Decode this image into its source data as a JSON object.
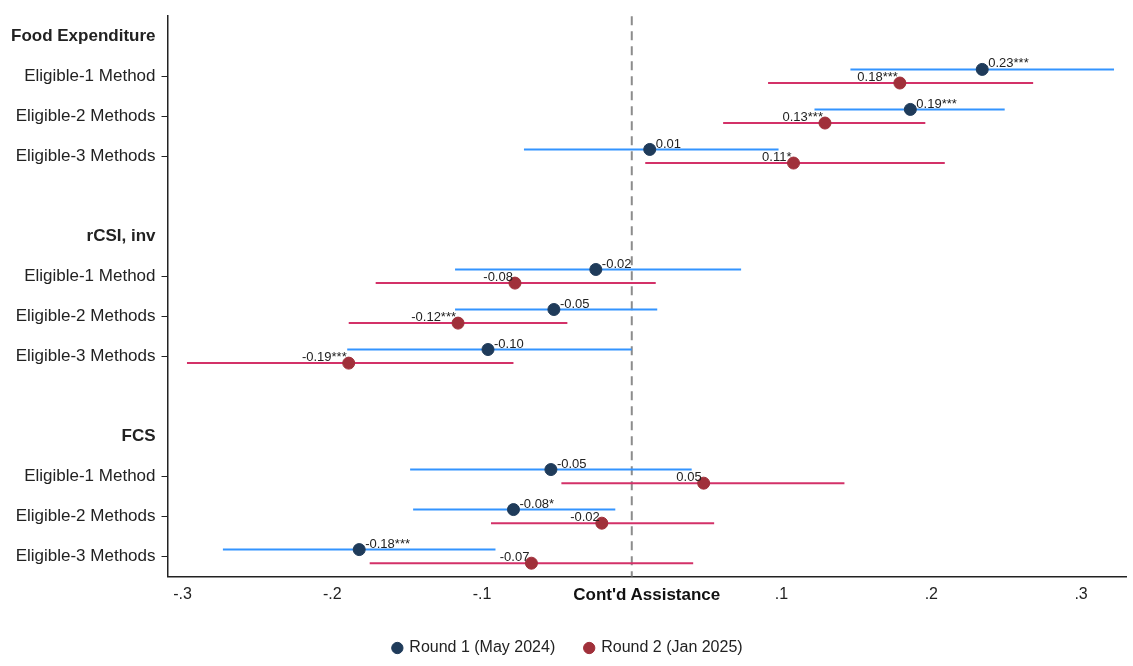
{
  "chart_data": {
    "type": "scatter",
    "orientation": "horizontal",
    "xlabel": "Cont'd Assistance",
    "categories": [
      "Food Expenditure",
      "Eligible-1 Method",
      "Eligible-2 Methods",
      "Eligible-3 Methods",
      null,
      "rCSI, inv",
      "Eligible-1 Method",
      "Eligible-2 Methods",
      "Eligible-3 Methods",
      null,
      "FCS",
      "Eligible-1 Method",
      "Eligible-2 Methods",
      "Eligible-3 Methods"
    ],
    "series": [
      {
        "name": "Round 1 (May 2024)",
        "color": "#1f3b5a",
        "values": [
          null,
          0.234,
          0.186,
          0.012,
          null,
          null,
          -0.024,
          -0.052,
          -0.096,
          null,
          null,
          -0.054,
          -0.079,
          -0.182
        ],
        "errors": [
          null,
          [
            0.146,
            0.322
          ],
          [
            0.122,
            0.249
          ],
          [
            -0.072,
            0.098
          ],
          null,
          null,
          [
            -0.118,
            0.073
          ],
          [
            -0.118,
            0.017
          ],
          [
            -0.19,
            0.0
          ],
          null,
          null,
          [
            -0.148,
            0.04
          ],
          [
            -0.146,
            -0.011
          ],
          [
            -0.273,
            -0.091
          ]
        ],
        "value_labels": [
          null,
          "0.23***",
          "0.19***",
          "0.01",
          null,
          null,
          "-0.02",
          "-0.05",
          "-0.10",
          null,
          null,
          "-0.05",
          "-0.08*",
          "-0.18***"
        ]
      },
      {
        "name": "Round 2 (Jan 2025)",
        "color": "#a0303a",
        "values": [
          null,
          0.179,
          0.129,
          0.108,
          null,
          null,
          -0.078,
          -0.116,
          -0.189,
          null,
          null,
          0.048,
          -0.02,
          -0.067
        ],
        "errors": [
          null,
          [
            0.091,
            0.268
          ],
          [
            0.061,
            0.196
          ],
          [
            0.009,
            0.209
          ],
          null,
          null,
          [
            -0.171,
            0.016
          ],
          [
            -0.189,
            -0.043
          ],
          [
            -0.297,
            -0.079
          ],
          null,
          null,
          [
            -0.047,
            0.142
          ],
          [
            -0.094,
            0.055
          ],
          [
            -0.175,
            0.041
          ]
        ],
        "value_labels": [
          null,
          "0.18***",
          "0.13***",
          "0.11*",
          null,
          null,
          "-0.08",
          "-0.12***",
          "-0.19***",
          null,
          null,
          "0.05",
          "-0.02",
          "-0.07"
        ]
      }
    ],
    "xlim": [
      -0.31,
      0.33
    ],
    "xticks": [
      {
        "value": -0.3,
        "label": "-.3"
      },
      {
        "value": -0.2,
        "label": "-.2"
      },
      {
        "value": -0.1,
        "label": "-.1"
      },
      {
        "value": 0,
        "label": null
      },
      {
        "value": 0.1,
        "label": ".1"
      },
      {
        "value": 0.2,
        "label": ".2"
      },
      {
        "value": 0.3,
        "label": ".3"
      }
    ],
    "ref_lines": [
      {
        "axis": "x",
        "value": 0,
        "color": "#8c8c8c",
        "line_style": "dashed"
      }
    ],
    "marker": "circle",
    "grid": false,
    "legend": "bottom"
  }
}
